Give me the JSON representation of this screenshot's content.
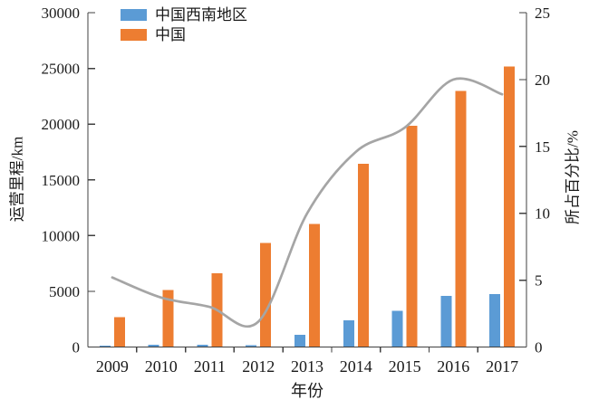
{
  "chart_data": {
    "type": "bar",
    "subtype": "grouped-bar-with-smooth-line-combo",
    "title": "",
    "categories": [
      "2009",
      "2010",
      "2011",
      "2012",
      "2013",
      "2014",
      "2015",
      "2016",
      "2017"
    ],
    "series": [
      {
        "name": "中国西南地区",
        "type": "bar",
        "axis": "left",
        "color": "#5B9BD5",
        "values": [
          140,
          190,
          200,
          180,
          1100,
          2400,
          3250,
          4600,
          4750
        ]
      },
      {
        "name": "中国",
        "type": "bar",
        "axis": "left",
        "color": "#ED7D31",
        "values": [
          2699,
          5133,
          6601,
          9356,
          11028,
          16456,
          19838,
          22980,
          25164
        ]
      },
      {
        "name": "所占百分比",
        "type": "line",
        "axis": "right",
        "color": "#A5A5A5",
        "in_legend": false,
        "values": [
          5.2,
          3.7,
          3.0,
          1.9,
          10.0,
          14.6,
          16.4,
          20.0,
          18.9
        ]
      }
    ],
    "xlabel": "年份",
    "ylabel_left": "运营里程/km",
    "ylabel_right": "所占百分比/%",
    "left_axis": {
      "min": 0,
      "max": 30000,
      "step": 5000,
      "tick_labels": [
        "0",
        "5000",
        "10000",
        "15000",
        "20000",
        "25000",
        "30000"
      ]
    },
    "right_axis": {
      "min": 0,
      "max": 25,
      "step": 5,
      "tick_labels": [
        "0",
        "5",
        "10",
        "15",
        "20",
        "25"
      ]
    },
    "grid": false,
    "legend_position": "top-left-inside",
    "axis_color": "#404040",
    "text_color": "#1a1a1a"
  }
}
